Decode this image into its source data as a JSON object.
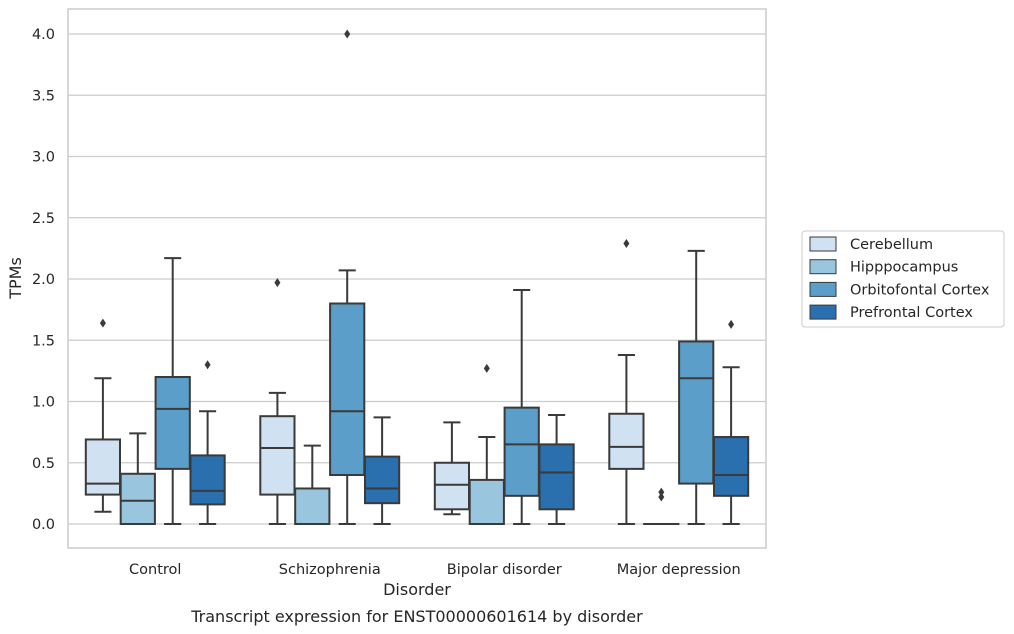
{
  "chart_data": {
    "type": "box",
    "title": "",
    "caption": "Transcript expression for ENST00000601614 by disorder",
    "xlabel": "Disorder",
    "ylabel": "TPMs",
    "ylim": [
      -0.19,
      4.2
    ],
    "yticks": [
      0.0,
      0.5,
      1.0,
      1.5,
      2.0,
      2.5,
      3.0,
      3.5,
      4.0
    ],
    "ytick_labels": [
      "0.0",
      "0.5",
      "1.0",
      "1.5",
      "2.0",
      "2.5",
      "3.0",
      "3.5",
      "4.0"
    ],
    "grid": "horizontal",
    "legend_position": "center-right outside",
    "categories": [
      "Control",
      "Schizophrenia",
      "Bipolar disorder",
      "Major depression"
    ],
    "series": [
      {
        "name": "Cerebellum",
        "color": "#d0e1f2",
        "boxes": [
          {
            "whisker_low": 0.1,
            "q1": 0.24,
            "median": 0.33,
            "q3": 0.69,
            "whisker_high": 1.19,
            "outliers": [
              1.64
            ]
          },
          {
            "whisker_low": 0.0,
            "q1": 0.24,
            "median": 0.62,
            "q3": 0.88,
            "whisker_high": 1.07,
            "outliers": [
              1.97
            ]
          },
          {
            "whisker_low": 0.08,
            "q1": 0.12,
            "median": 0.32,
            "q3": 0.5,
            "whisker_high": 0.83,
            "outliers": []
          },
          {
            "whisker_low": 0.0,
            "q1": 0.45,
            "median": 0.63,
            "q3": 0.9,
            "whisker_high": 1.38,
            "outliers": [
              2.29
            ]
          }
        ]
      },
      {
        "name": "Hipppocampus",
        "color": "#9ac5df",
        "boxes": [
          {
            "whisker_low": 0.0,
            "q1": 0.0,
            "median": 0.19,
            "q3": 0.41,
            "whisker_high": 0.74,
            "outliers": []
          },
          {
            "whisker_low": 0.0,
            "q1": 0.0,
            "median": 0.0,
            "q3": 0.29,
            "whisker_high": 0.64,
            "outliers": []
          },
          {
            "whisker_low": 0.0,
            "q1": 0.0,
            "median": 0.0,
            "q3": 0.36,
            "whisker_high": 0.71,
            "outliers": [
              1.27
            ]
          },
          {
            "whisker_low": 0.0,
            "q1": 0.0,
            "median": 0.0,
            "q3": 0.0,
            "whisker_high": 0.0,
            "outliers": [
              0.22,
              0.26
            ]
          }
        ]
      },
      {
        "name": "Orbitofontal Cortex",
        "color": "#5b9ec9",
        "boxes": [
          {
            "whisker_low": 0.0,
            "q1": 0.45,
            "median": 0.94,
            "q3": 1.2,
            "whisker_high": 2.17,
            "outliers": []
          },
          {
            "whisker_low": 0.0,
            "q1": 0.4,
            "median": 0.92,
            "q3": 1.8,
            "whisker_high": 2.07,
            "outliers": [
              4.0
            ]
          },
          {
            "whisker_low": 0.0,
            "q1": 0.23,
            "median": 0.65,
            "q3": 0.95,
            "whisker_high": 1.91,
            "outliers": []
          },
          {
            "whisker_low": 0.0,
            "q1": 0.33,
            "median": 1.19,
            "q3": 1.49,
            "whisker_high": 2.23,
            "outliers": []
          }
        ]
      },
      {
        "name": "Prefrontal Cortex",
        "color": "#2a6fae",
        "boxes": [
          {
            "whisker_low": 0.0,
            "q1": 0.16,
            "median": 0.27,
            "q3": 0.56,
            "whisker_high": 0.92,
            "outliers": [
              1.3
            ]
          },
          {
            "whisker_low": 0.0,
            "q1": 0.17,
            "median": 0.29,
            "q3": 0.55,
            "whisker_high": 0.87,
            "outliers": []
          },
          {
            "whisker_low": 0.0,
            "q1": 0.12,
            "median": 0.42,
            "q3": 0.65,
            "whisker_high": 0.89,
            "outliers": []
          },
          {
            "whisker_low": 0.0,
            "q1": 0.23,
            "median": 0.4,
            "q3": 0.71,
            "whisker_high": 1.28,
            "outliers": [
              1.63
            ]
          }
        ]
      }
    ]
  }
}
